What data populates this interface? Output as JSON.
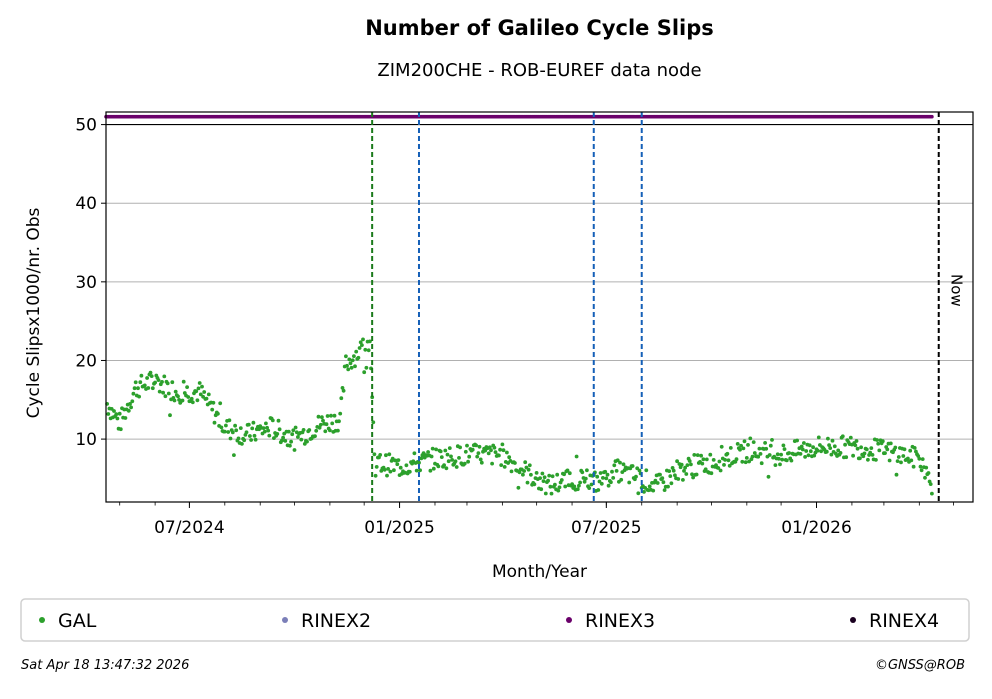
{
  "chart_data": {
    "type": "scatter",
    "title": "Number of Galileo Cycle Slips",
    "subtitle": "ZIM200CHE - ROB-EUREF data node",
    "xlabel": "Month/Year",
    "ylabel": "Cycle Slipsx1000/nr. Obs",
    "x_range": [
      "2024-04-19",
      "2026-05-18"
    ],
    "ylim": [
      2,
      50
    ],
    "y_ticks": [
      10,
      20,
      30,
      40,
      50
    ],
    "x_ticks": [
      {
        "date": "2024-07-01",
        "label": "07/2024"
      },
      {
        "date": "2025-01-01",
        "label": "01/2025"
      },
      {
        "date": "2025-07-01",
        "label": "07/2025"
      },
      {
        "date": "2026-01-01",
        "label": "01/2026"
      }
    ],
    "grid": "y",
    "legend_placement": "bottom",
    "series": [
      {
        "name": "GAL",
        "color": "#2ca02c",
        "marker": "dot",
        "anchors": [
          [
            "2024-04-20",
            14.5
          ],
          [
            "2024-05-01",
            12.0
          ],
          [
            "2024-05-15",
            16.5
          ],
          [
            "2024-06-01",
            17.5
          ],
          [
            "2024-06-20",
            16.0
          ],
          [
            "2024-07-10",
            16.0
          ],
          [
            "2024-08-01",
            11.5
          ],
          [
            "2024-08-20",
            10.5
          ],
          [
            "2024-09-10",
            11.5
          ],
          [
            "2024-10-01",
            10.0
          ],
          [
            "2024-10-25",
            12.0
          ],
          [
            "2024-11-10",
            12.5
          ],
          [
            "2024-11-15",
            19.5
          ],
          [
            "2024-12-06",
            22.5
          ],
          [
            "2024-12-10",
            7.0
          ],
          [
            "2025-01-01",
            6.5
          ],
          [
            "2025-02-01",
            7.5
          ],
          [
            "2025-03-01",
            8.0
          ],
          [
            "2025-04-01",
            8.0
          ],
          [
            "2025-04-20",
            6.0
          ],
          [
            "2025-05-10",
            4.0
          ],
          [
            "2025-06-01",
            5.0
          ],
          [
            "2025-06-25",
            4.5
          ],
          [
            "2025-07-10",
            6.0
          ],
          [
            "2025-08-01",
            5.0
          ],
          [
            "2025-08-15",
            4.0
          ],
          [
            "2025-09-01",
            6.0
          ],
          [
            "2025-10-01",
            7.0
          ],
          [
            "2025-11-01",
            8.5
          ],
          [
            "2025-12-01",
            8.0
          ],
          [
            "2026-01-01",
            9.0
          ],
          [
            "2026-02-01",
            9.0
          ],
          [
            "2026-03-01",
            8.5
          ],
          [
            "2026-04-01",
            7.5
          ],
          [
            "2026-04-12",
            4.0
          ]
        ]
      },
      {
        "name": "RINEX2",
        "color": "#7b7fb8",
        "marker": "dot",
        "values": []
      },
      {
        "name": "RINEX3",
        "color": "#6a006a",
        "marker": "dot",
        "y": 51,
        "x_range": [
          "2024-04-19",
          "2026-04-12"
        ]
      },
      {
        "name": "RINEX4",
        "color": "#1a0020",
        "marker": "dot",
        "values": []
      }
    ],
    "vlines": [
      {
        "date": "2024-12-08",
        "color": "#1a7a1a",
        "style": "dashed"
      },
      {
        "date": "2025-01-18",
        "color": "#1560b8",
        "style": "dashed"
      },
      {
        "date": "2025-06-20",
        "color": "#1560b8",
        "style": "dashed"
      },
      {
        "date": "2025-08-01",
        "color": "#1560b8",
        "style": "dashed"
      },
      {
        "date": "2026-04-18",
        "color": "#000000",
        "style": "dashed",
        "label": "Now"
      }
    ]
  },
  "footer": {
    "timestamp": "Sat Apr 18 13:47:32 2026",
    "copyright": "©GNSS@ROB"
  }
}
